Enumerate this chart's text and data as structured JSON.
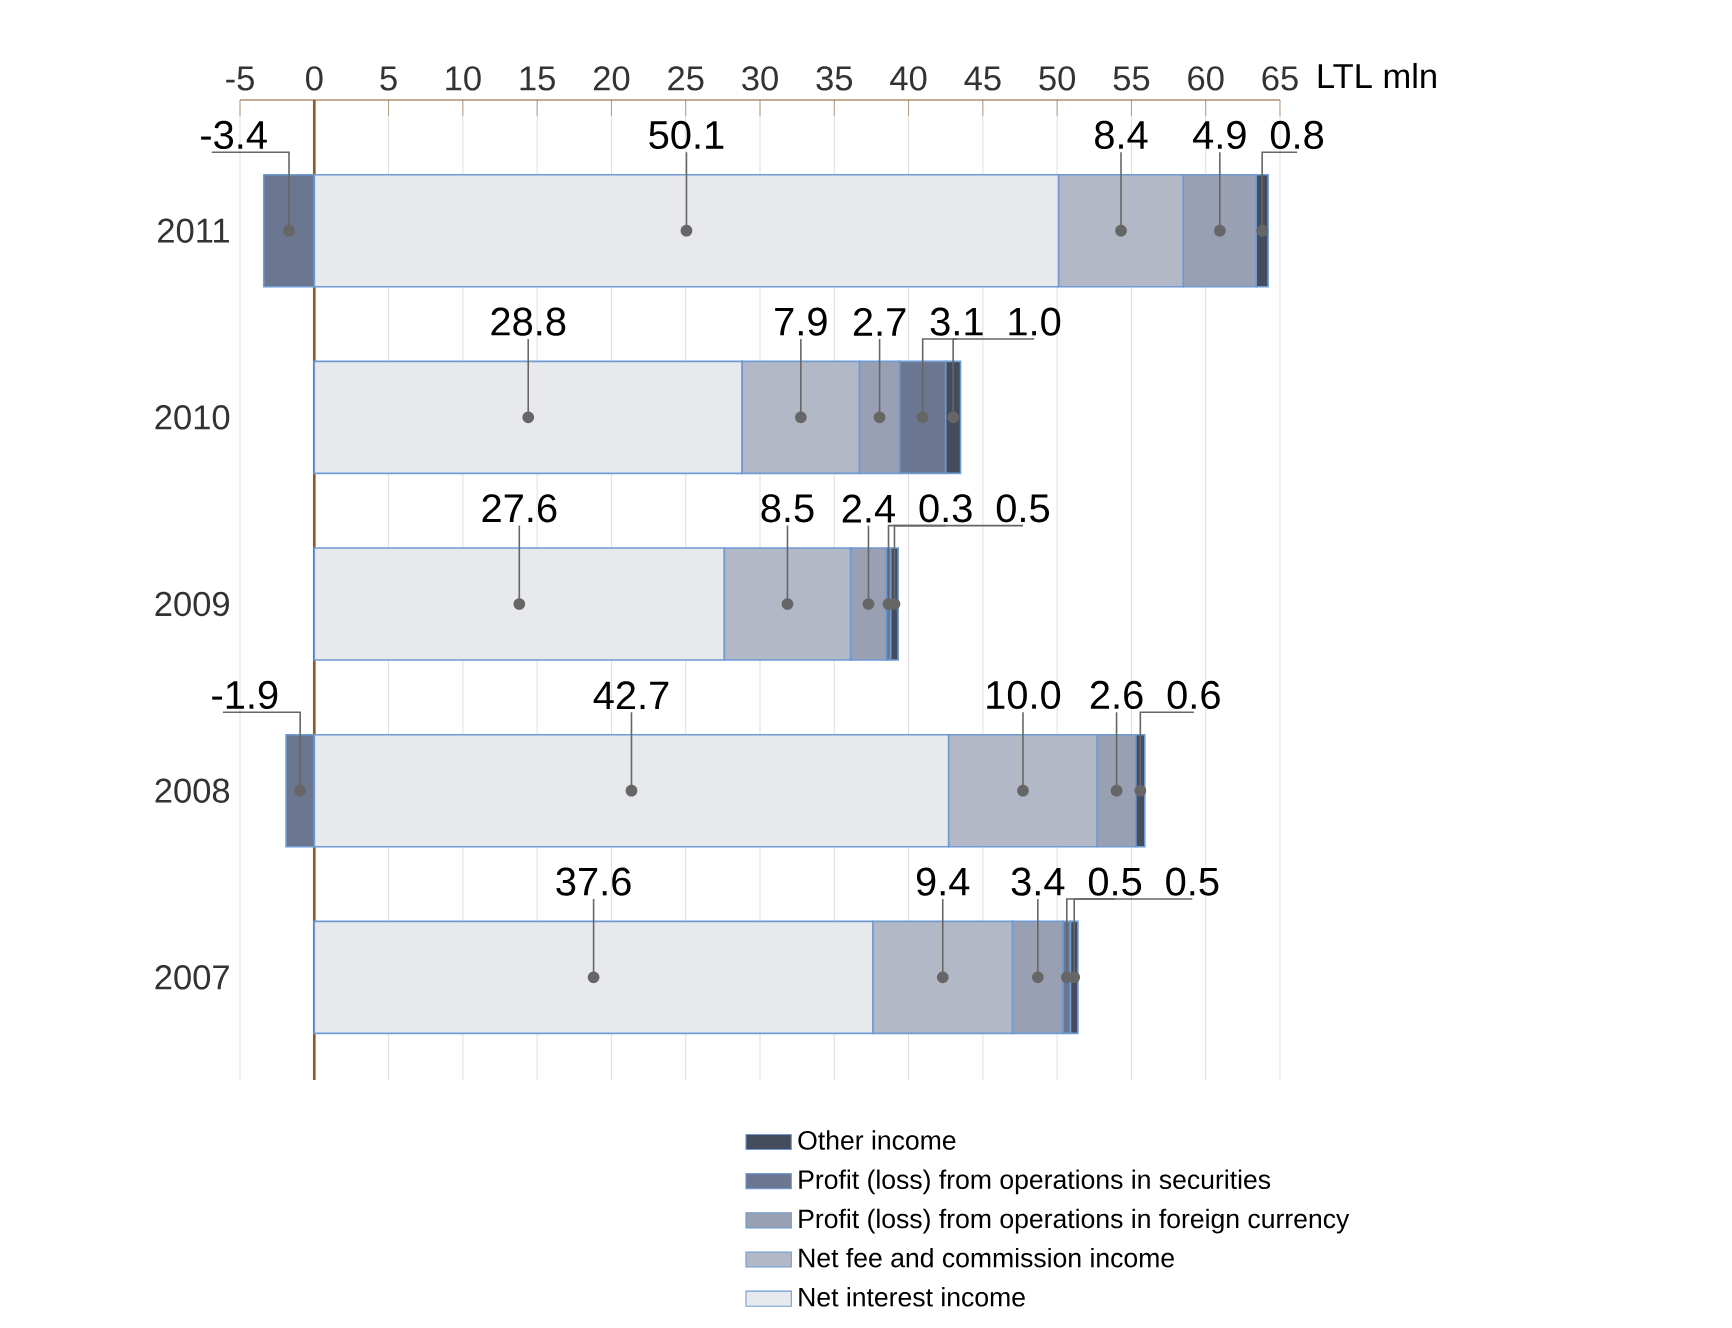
{
  "chart_data": {
    "type": "bar",
    "orientation": "horizontal",
    "stacked": true,
    "xlabel": "LTL mln",
    "categories": [
      "2011",
      "2010",
      "2009",
      "2008",
      "2007"
    ],
    "series": [
      {
        "name": "Net interest income",
        "color": "#e8e9ed",
        "values": [
          50.1,
          28.8,
          27.6,
          42.7,
          37.6
        ],
        "value_labels": [
          "50.1",
          "28.8",
          "27.6",
          "42.7",
          "37.6"
        ]
      },
      {
        "name": "Net fee and commission income",
        "color": "#b3b8c7",
        "values": [
          8.4,
          7.9,
          8.5,
          10.0,
          9.4
        ],
        "value_labels": [
          "8.4",
          "7.9",
          "8.5",
          "10.0",
          "9.4"
        ]
      },
      {
        "name": "Profit (loss) from operations in foreign currency",
        "color": "#9aa0b3",
        "values": [
          4.9,
          2.7,
          2.4,
          2.6,
          3.4
        ],
        "value_labels": [
          "4.9",
          "2.7",
          "2.4",
          "2.6",
          "3.4"
        ]
      },
      {
        "name": "Profit (loss) from operations in securities",
        "color": "#6b7691",
        "values": [
          -3.4,
          3.1,
          0.3,
          -1.9,
          0.5
        ],
        "value_labels": [
          "-3.4",
          "3.1",
          "0.3",
          "-1.9",
          "0.5"
        ]
      },
      {
        "name": "Other income",
        "color": "#454c5e",
        "values": [
          0.8,
          1.0,
          0.5,
          0.6,
          0.5
        ],
        "value_labels": [
          "0.8",
          "1.0",
          "0.5",
          "0.6",
          "0.5"
        ]
      }
    ],
    "xlim": [
      -5,
      65
    ],
    "xticks": [
      -5,
      0,
      5,
      10,
      15,
      20,
      25,
      30,
      35,
      40,
      45,
      50,
      55,
      60,
      65
    ],
    "ref_lines": [
      {
        "axis": "x",
        "value": 0,
        "color": "#8b5a2b"
      }
    ],
    "grid": "x",
    "legend": "bottom right"
  }
}
